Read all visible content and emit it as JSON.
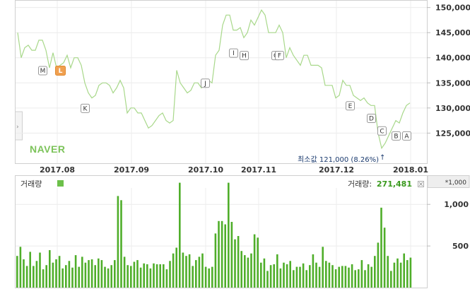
{
  "chart_data": [
    {
      "type": "line",
      "title": "",
      "brand": "NAVER",
      "ylim": [
        119000,
        151500
      ],
      "y_ticks": [
        "150,000",
        "145,000",
        "140,000",
        "135,000",
        "130,000",
        "125,000"
      ],
      "y_tick_values": [
        150000,
        145000,
        140000,
        135000,
        130000,
        125000
      ],
      "x_ticks": [
        "2017.08",
        "2017.09",
        "2017.10",
        "2017.11",
        "2017.12",
        "2018.01"
      ],
      "x_tick_index": [
        11,
        32,
        53,
        68,
        90,
        111
      ],
      "series": [
        {
          "values": [
            145000,
            140000,
            142000,
            142500,
            141500,
            141500,
            143500,
            143500,
            141500,
            138000,
            141000,
            138000,
            138500,
            139000,
            140500,
            138000,
            140000,
            140000,
            138500,
            135000,
            133000,
            132000,
            132500,
            134500,
            135000,
            135000,
            134500,
            133000,
            134000,
            135500,
            134000,
            129000,
            130000,
            130000,
            129000,
            129000,
            127500,
            126000,
            126500,
            127500,
            128500,
            129000,
            127500,
            127000,
            127500,
            137500,
            135000,
            134000,
            133000,
            133500,
            135000,
            135000,
            134000,
            135000,
            135500,
            135000,
            140500,
            141500,
            146500,
            148500,
            148500,
            145500,
            145500,
            146000,
            144000,
            145000,
            147500,
            146500,
            148000,
            149500,
            148500,
            145000,
            145000,
            145000,
            146500,
            145000,
            140000,
            142000,
            140500,
            139500,
            138500,
            140500,
            140500,
            138500,
            138500,
            138500,
            138000,
            134500,
            134500,
            134500,
            132000,
            132500,
            135500,
            134500,
            134500,
            132500,
            132000,
            131500,
            132000,
            131000,
            130500,
            130500,
            125000,
            122000,
            123000,
            124500,
            126000,
            127500,
            127000,
            129000,
            130500,
            131000
          ]
        }
      ],
      "events": [
        {
          "label": "M",
          "index": 7,
          "value": 137500,
          "highlight": false
        },
        {
          "label": "L",
          "index": 12,
          "value": 137500,
          "highlight": true
        },
        {
          "label": "K",
          "index": 19,
          "value": 130000,
          "highlight": false
        },
        {
          "label": "J",
          "index": 53,
          "value": 135000,
          "highlight": false
        },
        {
          "label": "I",
          "index": 61,
          "value": 141000,
          "highlight": false
        },
        {
          "label": "H",
          "index": 64,
          "value": 140500,
          "highlight": false
        },
        {
          "label": "G",
          "index": 73,
          "value": 140500,
          "highlight": false
        },
        {
          "label": "F",
          "index": 74,
          "value": 140500,
          "highlight": false
        },
        {
          "label": "E",
          "index": 94,
          "value": 130500,
          "highlight": false
        },
        {
          "label": "D",
          "index": 100,
          "value": 128000,
          "highlight": false
        },
        {
          "label": "C",
          "index": 103,
          "value": 125500,
          "highlight": false
        },
        {
          "label": "B",
          "index": 107,
          "value": 124500,
          "highlight": false
        },
        {
          "label": "A",
          "index": 110,
          "value": 124500,
          "highlight": false
        }
      ],
      "min_annotation": {
        "index": 103,
        "text": "최소값 121,000 (8.26%)",
        "arrow": "↑"
      }
    },
    {
      "type": "bar",
      "title": "",
      "legend_label": "거래량",
      "current_label": "거래량:",
      "current_value": "271,481",
      "unit_label": "*1,000",
      "ylim": [
        0,
        1350
      ],
      "y_ticks": [
        "1,000",
        "500"
      ],
      "y_tick_values": [
        1000,
        500
      ],
      "values": [
        380,
        490,
        340,
        260,
        430,
        260,
        320,
        420,
        220,
        270,
        450,
        300,
        340,
        380,
        230,
        270,
        320,
        240,
        390,
        250,
        370,
        300,
        330,
        340,
        270,
        350,
        330,
        250,
        230,
        270,
        330,
        1100,
        1050,
        370,
        270,
        260,
        310,
        330,
        240,
        290,
        280,
        230,
        290,
        280,
        280,
        280,
        220,
        320,
        410,
        480,
        1260,
        420,
        380,
        400,
        260,
        330,
        370,
        410,
        250,
        230,
        250,
        650,
        800,
        800,
        760,
        1260,
        790,
        580,
        620,
        440,
        390,
        360,
        410,
        640,
        600,
        300,
        350,
        200,
        270,
        280,
        400,
        230,
        300,
        280,
        320,
        210,
        250,
        250,
        290,
        210,
        270,
        400,
        300,
        250,
        490,
        320,
        300,
        270,
        220,
        250,
        260,
        260,
        240,
        280,
        210,
        220,
        330,
        210,
        280,
        250,
        380,
        540,
        960,
        720,
        380,
        200,
        300,
        350,
        300,
        410,
        330,
        360
      ]
    }
  ]
}
